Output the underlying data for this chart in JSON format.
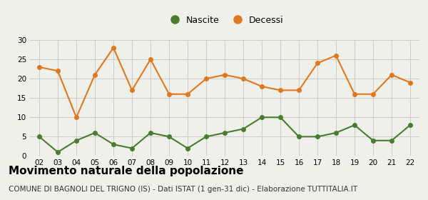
{
  "years": [
    2,
    3,
    4,
    5,
    6,
    7,
    8,
    9,
    10,
    11,
    12,
    13,
    14,
    15,
    16,
    17,
    18,
    19,
    20,
    21,
    22
  ],
  "nascite": [
    5,
    1,
    4,
    6,
    3,
    2,
    6,
    5,
    2,
    5,
    6,
    7,
    10,
    10,
    5,
    5,
    6,
    8,
    4,
    4,
    8
  ],
  "decessi": [
    23,
    22,
    10,
    21,
    28,
    17,
    25,
    16,
    16,
    20,
    21,
    20,
    18,
    17,
    17,
    24,
    26,
    16,
    16,
    21,
    19
  ],
  "nascite_color": "#4a7c2f",
  "decessi_color": "#e07820",
  "background_color": "#f0f0eb",
  "grid_color": "#cccccc",
  "ylim": [
    0,
    30
  ],
  "yticks": [
    0,
    5,
    10,
    15,
    20,
    25,
    30
  ],
  "title": "Movimento naturale della popolazione",
  "subtitle": "COMUNE DI BAGNOLI DEL TRIGNO (IS) - Dati ISTAT (1 gen-31 dic) - Elaborazione TUTTITALIA.IT",
  "legend_nascite": "Nascite",
  "legend_decessi": "Decessi",
  "title_fontsize": 11,
  "subtitle_fontsize": 7.5,
  "marker_size": 4
}
